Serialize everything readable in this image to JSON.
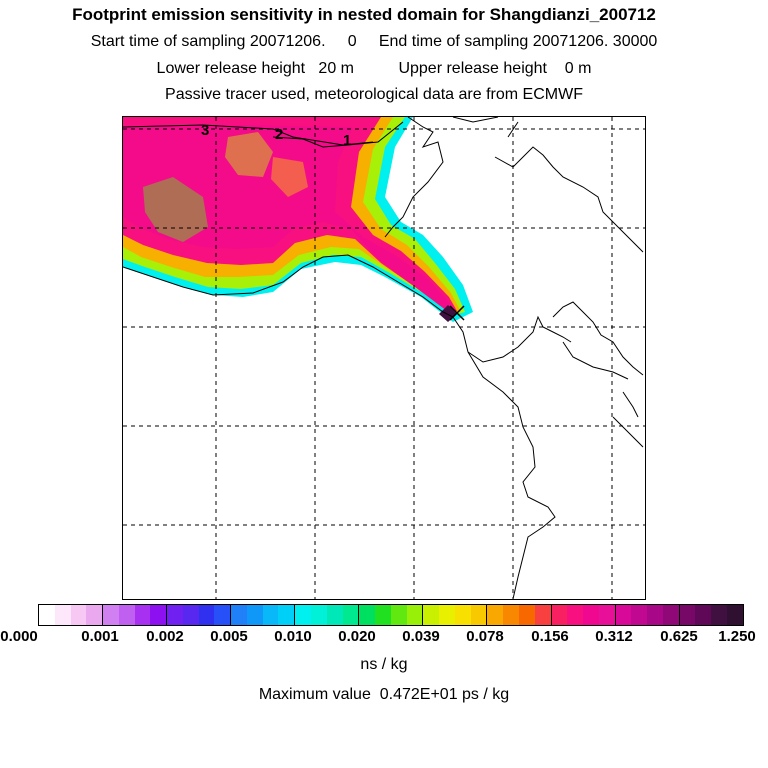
{
  "header": {
    "title": "Footprint emission sensitivity in nested domain for Shangdianzi_200712",
    "line1": "Start time of sampling 20071206.     0     End time of sampling 20071206. 30000",
    "line2": "Lower release height   20 m          Upper release height    0 m",
    "line3": "Passive tracer used, meteorological data are from ECMWF"
  },
  "map": {
    "contour_labels": [
      "3",
      "2",
      "1"
    ],
    "colors": {
      "coastline": "#000000",
      "grid": "#000000"
    }
  },
  "colorbar": {
    "tick_labels": [
      "0.000",
      "0.001",
      "0.002",
      "0.005",
      "0.010",
      "0.020",
      "0.039",
      "0.078",
      "0.156",
      "0.312",
      "0.625",
      "1.250"
    ],
    "colors": [
      "#ffffff",
      "#fde8fb",
      "#f6c8f3",
      "#eaa8ef",
      "#d080f0",
      "#c060f0",
      "#a830f0",
      "#8c10f0",
      "#7020f0",
      "#5828f0",
      "#3030f0",
      "#2850f8",
      "#2080f8",
      "#1098f8",
      "#08b8f8",
      "#00d0f8",
      "#00f0f0",
      "#00f0d8",
      "#00e8b8",
      "#00e890",
      "#00e060",
      "#20e020",
      "#60e810",
      "#98f008",
      "#c8f000",
      "#e8f000",
      "#f8e000",
      "#f8c800",
      "#f8a800",
      "#f88800",
      "#f86800",
      "#f84040",
      "#f82060",
      "#f81080",
      "#f00890",
      "#e81098",
      "#d80898",
      "#c00890",
      "#a80888",
      "#900878",
      "#780868",
      "#600858",
      "#401040",
      "#301030"
    ]
  },
  "units": "ns / kg",
  "maximum": "Maximum value  0.472E+01 ps / kg"
}
